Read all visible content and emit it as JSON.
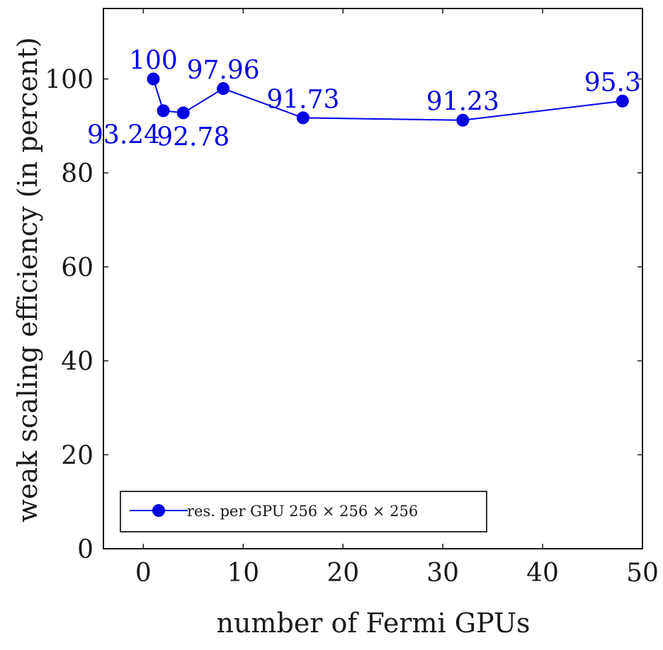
{
  "chart_data": {
    "type": "line",
    "xlabel": "number of Fermi GPUs",
    "ylabel": "weak scaling efficiency (in percent)",
    "xlim": [
      -4,
      50
    ],
    "ylim": [
      0,
      115
    ],
    "x_ticks": [
      0,
      10,
      20,
      30,
      40,
      50
    ],
    "y_ticks": [
      0,
      20,
      40,
      60,
      80,
      100
    ],
    "grid": false,
    "legend_position": "bottom-left",
    "series": [
      {
        "name": "res. per GPU 256 × 256 × 256",
        "color": "#0000e6",
        "marker": "circle",
        "x": [
          1,
          2,
          4,
          8,
          16,
          32,
          48
        ],
        "y": [
          100,
          93.24,
          92.78,
          97.96,
          91.73,
          91.23,
          95.3
        ],
        "labels": [
          "100",
          "93.24",
          "92.78",
          "97.96",
          "91.73",
          "91.23",
          "95.3"
        ]
      }
    ]
  }
}
